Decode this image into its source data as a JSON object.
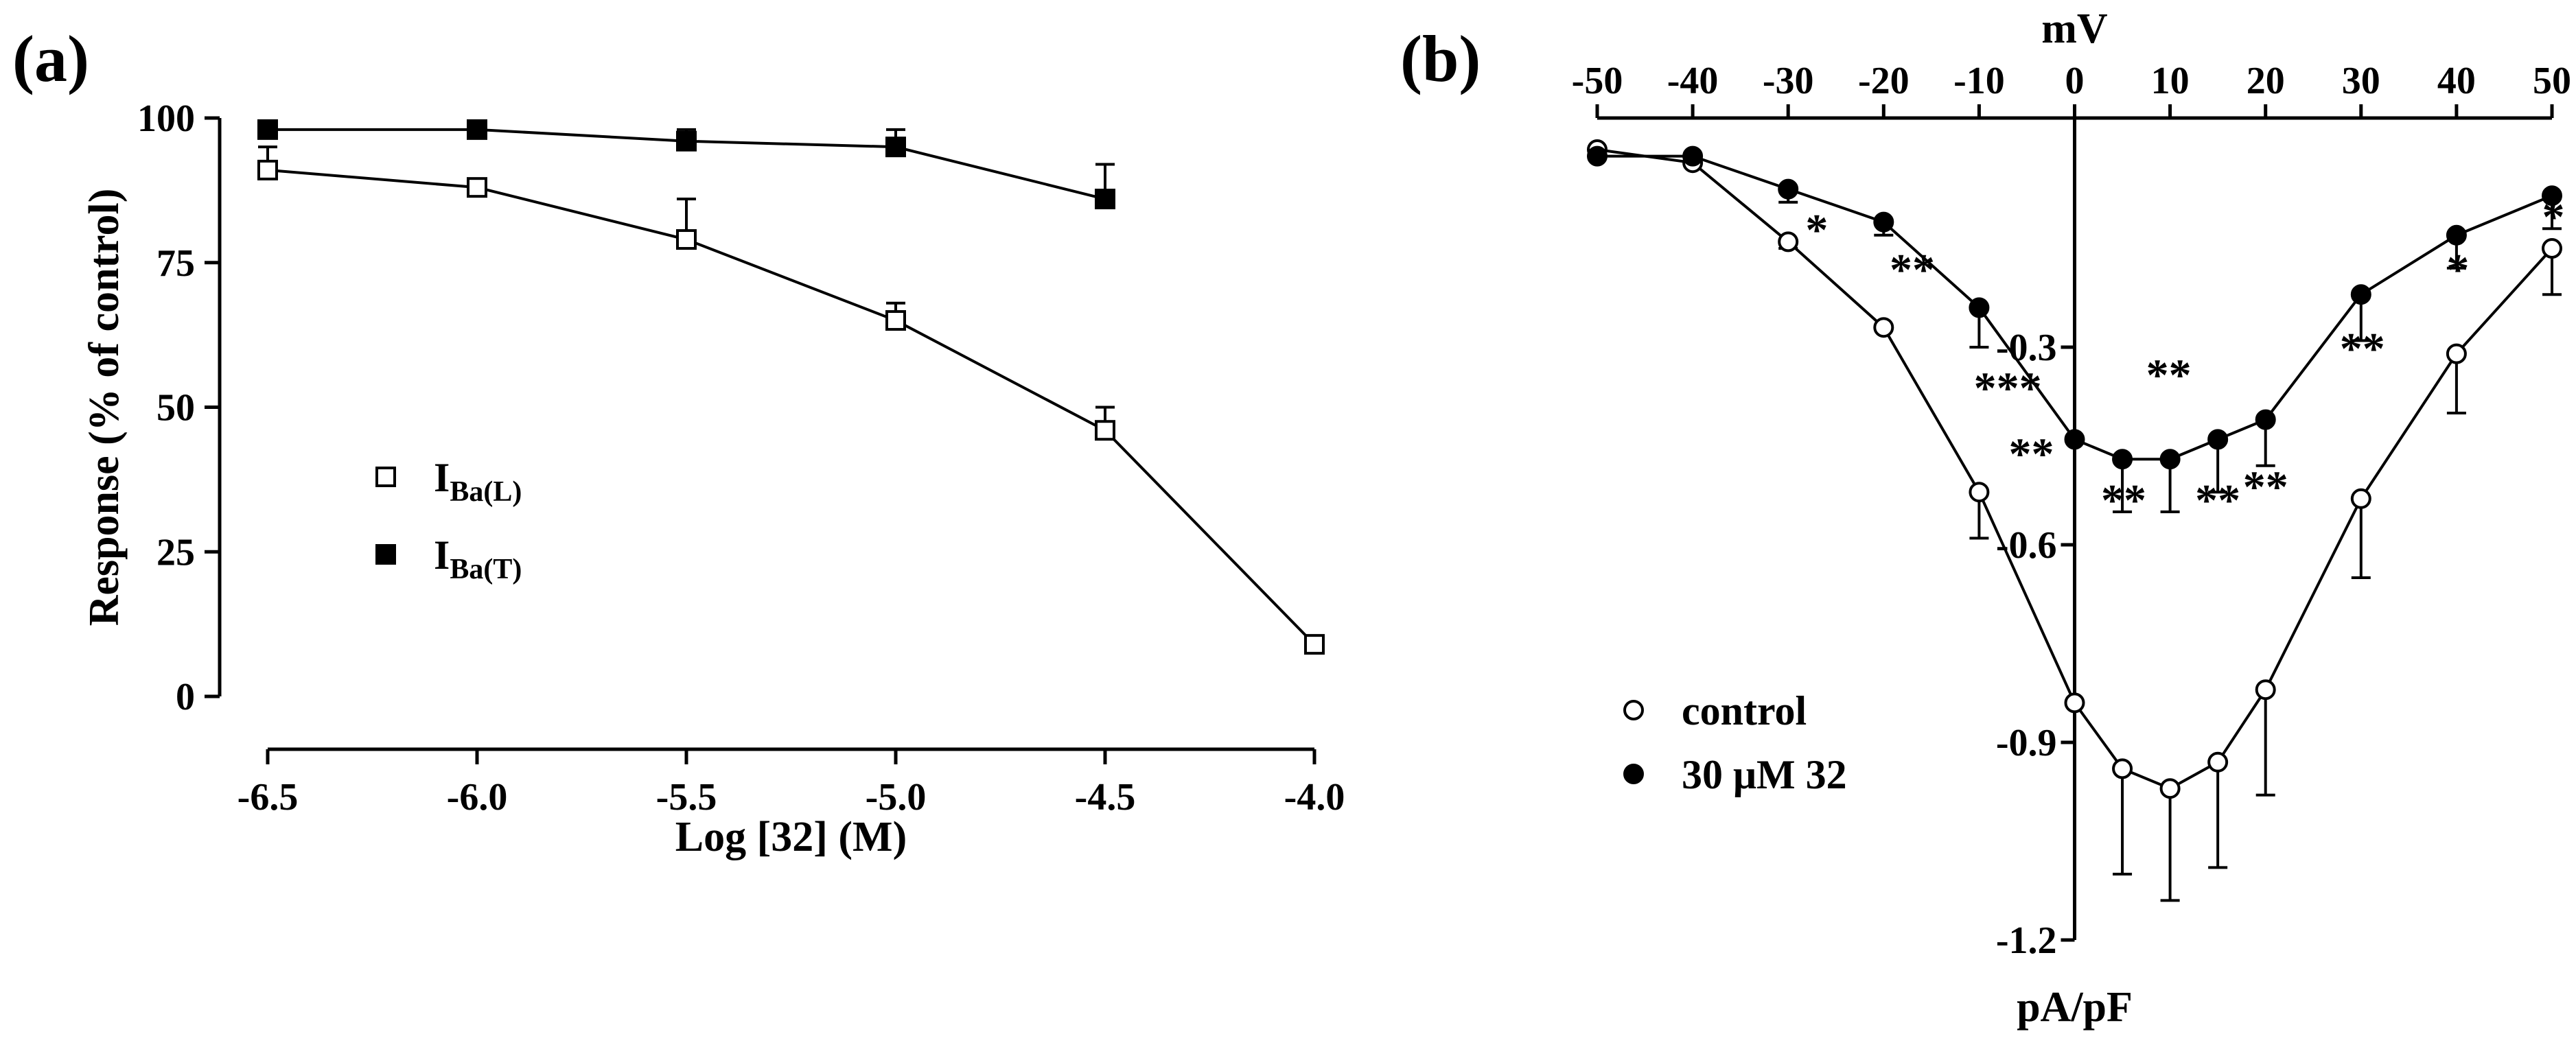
{
  "chart_data": [
    {
      "type": "line",
      "panel_label": "(a)",
      "xlabel": "Log [32] (M)",
      "ylabel": "Response (% of control)",
      "xlim": [
        -6.5,
        -4.0
      ],
      "ylim": [
        0,
        100
      ],
      "x_ticks": [
        -6.5,
        -6.0,
        -5.5,
        -5.0,
        -4.5,
        -4.0
      ],
      "x_tick_labels": [
        "-6.5",
        "-6.0",
        "-5.5",
        "-5.0",
        "-4.5",
        "-4.0"
      ],
      "y_ticks": [
        0,
        25,
        50,
        75,
        100
      ],
      "y_tick_labels": [
        "0",
        "25",
        "50",
        "75",
        "100"
      ],
      "legend_position": "center-left",
      "series": [
        {
          "name": "IBa(L)",
          "label_main": "I",
          "label_sub": "Ba(L)",
          "marker": "square-open",
          "x": [
            -6.5,
            -6.0,
            -5.5,
            -5.0,
            -4.5,
            -4.0
          ],
          "y": [
            91,
            88,
            79,
            65,
            46,
            9
          ],
          "err": [
            4,
            0,
            7,
            3,
            4,
            0
          ]
        },
        {
          "name": "IBa(T)",
          "label_main": "I",
          "label_sub": "Ba(T)",
          "marker": "square-filled",
          "x": [
            -6.5,
            -6.0,
            -5.5,
            -5.0,
            -4.5
          ],
          "y": [
            98,
            98,
            96,
            95,
            86
          ],
          "err": [
            0,
            0,
            2,
            3,
            6
          ]
        }
      ]
    },
    {
      "type": "line",
      "panel_label": "(b)",
      "xlabel": "mV",
      "ylabel": "pA/pF",
      "xlim": [
        -50,
        50
      ],
      "ylim": [
        -1.2,
        0
      ],
      "x_ticks": [
        -50,
        -40,
        -30,
        -20,
        -10,
        0,
        10,
        20,
        30,
        40,
        50
      ],
      "x_tick_labels": [
        "-50",
        "-40",
        "-30",
        "-20",
        "-10",
        "0",
        "10",
        "20",
        "30",
        "40",
        "50"
      ],
      "y_ticks": [
        -0.3,
        -0.6,
        -0.9,
        -1.2
      ],
      "y_tick_labels": [
        "-0.3",
        "-0.6",
        "-0.9",
        "-1.2"
      ],
      "legend_position": "bottom-left",
      "series": [
        {
          "name": "control",
          "marker": "circle-open",
          "x": [
            -50,
            -40,
            -30,
            -20,
            -10,
            0,
            5,
            10,
            15,
            20,
            30,
            40,
            50
          ],
          "y": [
            0.0,
            -0.02,
            -0.14,
            -0.27,
            -0.52,
            -0.84,
            -0.94,
            -0.97,
            -0.93,
            -0.82,
            -0.53,
            -0.31,
            -0.15
          ],
          "err": [
            0,
            0,
            0.01,
            0,
            0.07,
            0,
            0.16,
            0.17,
            0.16,
            0.16,
            0.12,
            0.09,
            0.07
          ]
        },
        {
          "name": "30 μM 32",
          "marker": "circle-filled",
          "x": [
            -50,
            -40,
            -30,
            -20,
            -10,
            0,
            5,
            10,
            15,
            20,
            30,
            40,
            50
          ],
          "y": [
            -0.01,
            -0.01,
            -0.06,
            -0.11,
            -0.24,
            -0.44,
            -0.47,
            -0.47,
            -0.44,
            -0.41,
            -0.22,
            -0.13,
            -0.07
          ],
          "err": [
            0,
            0,
            0.02,
            0.02,
            0.06,
            0,
            0.08,
            0.08,
            0.08,
            0.07,
            0.07,
            0.05,
            0.05
          ],
          "significance": [
            {
              "x": -25,
              "text": "*"
            },
            {
              "x": -15,
              "text": "**"
            },
            {
              "x": -5,
              "text": "***"
            },
            {
              "x": 0,
              "text": "**"
            },
            {
              "x": 5,
              "text": "**"
            },
            {
              "x": 10,
              "text": "**"
            },
            {
              "x": 15,
              "text": "**"
            },
            {
              "x": 20,
              "text": "**"
            },
            {
              "x": 30,
              "text": "**"
            },
            {
              "x": 40,
              "text": "*"
            },
            {
              "x": 50,
              "text": "*"
            }
          ]
        }
      ]
    }
  ]
}
